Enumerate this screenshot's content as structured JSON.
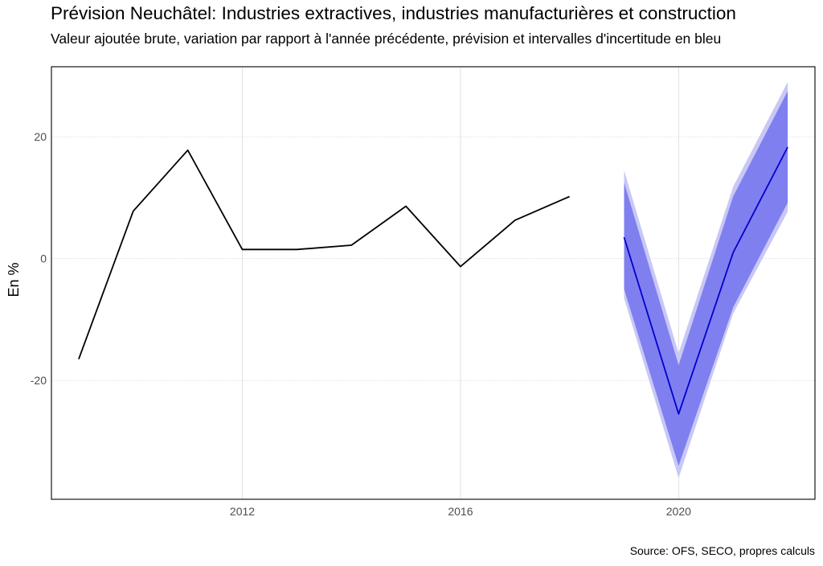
{
  "title": "Prévision Neuchâtel: Industries extractives, industries manufacturières et construction",
  "subtitle": "Valeur ajoutée brute, variation par rapport à l'année précédente, prévision et intervalles d'incertitude en bleu",
  "caption": "Source: OFS, SECO, propres calculs",
  "chart_data": {
    "type": "line",
    "title": "Prévision Neuchâtel: Industries extractives, industries manufacturières et construction",
    "subtitle": "Valeur ajoutée brute, variation par rapport à l'année précédente, prévision et intervalles d'incertitude en bleu",
    "xlabel": "",
    "ylabel": "En %",
    "xlim": [
      2008.5,
      2022.5
    ],
    "ylim": [
      -39.5,
      31.5
    ],
    "x_ticks": [
      2012,
      2016,
      2020
    ],
    "y_ticks": [
      -20,
      0,
      20
    ],
    "grid": true,
    "legend": "none",
    "series": [
      {
        "role": "historical",
        "color": "#000000",
        "x": [
          2009,
          2010,
          2011,
          2012,
          2013,
          2014,
          2015,
          2016,
          2017,
          2018
        ],
        "y": [
          -16.5,
          7.8,
          17.8,
          1.5,
          1.5,
          2.2,
          8.6,
          -1.3,
          6.3,
          10.2
        ]
      },
      {
        "role": "forecast",
        "color": "#0000cc",
        "x": [
          2019,
          2020,
          2021,
          2022
        ],
        "y": [
          3.5,
          -25.5,
          1.0,
          18.3
        ]
      }
    ],
    "bands": [
      {
        "role": "outer-interval",
        "color": "#c8c8f5",
        "x": [
          2019,
          2020,
          2021,
          2022
        ],
        "lower": [
          -6.5,
          -36.0,
          -9.0,
          7.7
        ],
        "upper": [
          14.5,
          -15.5,
          11.8,
          29.0
        ]
      },
      {
        "role": "inner-interval",
        "color": "#7f7ff0",
        "x": [
          2019,
          2020,
          2021,
          2022
        ],
        "lower": [
          -5.0,
          -34.0,
          -8.0,
          9.2
        ],
        "upper": [
          12.5,
          -17.5,
          10.2,
          27.5
        ]
      }
    ],
    "colors": {
      "grid": "#d9d9d9",
      "axis": "#000000",
      "ticks": "#4d4d4d"
    }
  }
}
